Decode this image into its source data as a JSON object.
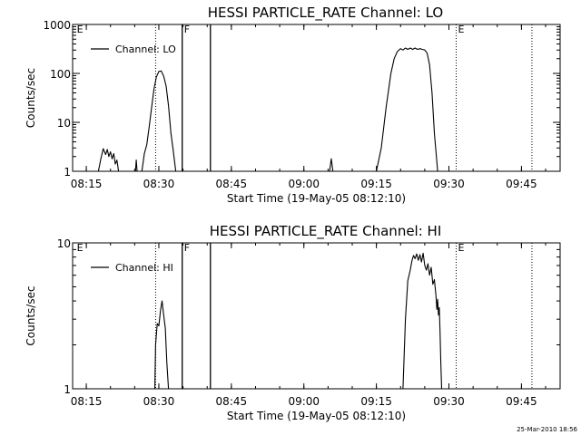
{
  "footer": {
    "timestamp": "25-Mar-2010 18:56"
  },
  "chart_data": [
    {
      "type": "line",
      "title": "HESSI PARTICLE_RATE Channel: LO",
      "xlabel": "Start Time (19-May-05 08:12:10)",
      "ylabel": "Counts/sec",
      "yscale": "log",
      "xlim": [
        "08:12:10",
        "09:53:00"
      ],
      "ylim": [
        1,
        1000
      ],
      "x_ticks": [
        "08:15",
        "08:30",
        "08:45",
        "09:00",
        "09:15",
        "09:30",
        "09:45"
      ],
      "y_ticks": [
        "1",
        "10",
        "100",
        "1000"
      ],
      "legend": {
        "label": "Channel: LO",
        "placement": "top-left"
      },
      "markers": [
        {
          "label": "E",
          "time": "08:12:40",
          "style": "none"
        },
        {
          "label": "",
          "time": "08:29:20",
          "style": "dotted"
        },
        {
          "label": "F",
          "time": "08:34:50",
          "style": "solid"
        },
        {
          "label": "",
          "time": "08:40:40",
          "style": "solid"
        },
        {
          "label": "E",
          "time": "09:31:30",
          "style": "dotted"
        },
        {
          "label": "",
          "time": "09:47:10",
          "style": "dotted"
        }
      ],
      "series": [
        {
          "segments": [
            [
              [
                "08:17:30",
                1
              ],
              [
                "08:18:00",
                1.8
              ],
              [
                "08:18:30",
                2.9
              ],
              [
                "08:19:00",
                2.2
              ],
              [
                "08:19:20",
                2.8
              ],
              [
                "08:19:40",
                2.0
              ],
              [
                "08:20:00",
                2.5
              ],
              [
                "08:20:20",
                1.8
              ],
              [
                "08:20:40",
                2.3
              ],
              [
                "08:21:00",
                1.4
              ],
              [
                "08:21:20",
                1.7
              ],
              [
                "08:21:40",
                1
              ]
            ],
            [
              [
                "08:25:10",
                1
              ],
              [
                "08:25:20",
                1.7
              ],
              [
                "08:25:30",
                1
              ]
            ],
            [
              [
                "08:26:30",
                1
              ],
              [
                "08:27:00",
                2.3
              ],
              [
                "08:27:30",
                3.5
              ],
              [
                "08:28:00",
                8
              ],
              [
                "08:28:30",
                20
              ],
              [
                "08:29:00",
                48
              ],
              [
                "08:29:30",
                85
              ],
              [
                "08:30:00",
                110
              ],
              [
                "08:30:30",
                112
              ],
              [
                "08:31:00",
                88
              ],
              [
                "08:31:30",
                55
              ],
              [
                "08:32:00",
                22
              ],
              [
                "08:32:30",
                6
              ],
              [
                "08:33:00",
                2.5
              ],
              [
                "08:33:30",
                1
              ]
            ],
            [
              [
                "09:05:20",
                1
              ],
              [
                "09:05:40",
                1.8
              ],
              [
                "09:06:00",
                1
              ]
            ],
            [
              [
                "09:15:00",
                1
              ],
              [
                "09:16:00",
                3
              ],
              [
                "09:17:00",
                20
              ],
              [
                "09:18:00",
                100
              ],
              [
                "09:18:40",
                200
              ],
              [
                "09:19:20",
                280
              ],
              [
                "09:20:00",
                320
              ],
              [
                "09:20:30",
                300
              ],
              [
                "09:21:00",
                330
              ],
              [
                "09:21:30",
                310
              ],
              [
                "09:22:00",
                330
              ],
              [
                "09:22:30",
                310
              ],
              [
                "09:23:00",
                330
              ],
              [
                "09:23:30",
                310
              ],
              [
                "09:24:00",
                320
              ],
              [
                "09:24:30",
                310
              ],
              [
                "09:25:00",
                300
              ],
              [
                "09:25:30",
                260
              ],
              [
                "09:26:00",
                150
              ],
              [
                "09:26:30",
                40
              ],
              [
                "09:27:00",
                6
              ],
              [
                "09:27:40",
                1
              ]
            ]
          ]
        }
      ]
    },
    {
      "type": "line",
      "title": "HESSI PARTICLE_RATE Channel: HI",
      "xlabel": "Start Time (19-May-05 08:12:10)",
      "ylabel": "Counts/sec",
      "yscale": "log",
      "xlim": [
        "08:12:10",
        "09:53:00"
      ],
      "ylim": [
        1,
        10
      ],
      "x_ticks": [
        "08:15",
        "08:30",
        "08:45",
        "09:00",
        "09:15",
        "09:30",
        "09:45"
      ],
      "y_ticks": [
        "1",
        "10"
      ],
      "legend": {
        "label": "Channel: HI",
        "placement": "top-left"
      },
      "markers": [
        {
          "label": "E",
          "time": "08:12:40",
          "style": "none"
        },
        {
          "label": "",
          "time": "08:29:20",
          "style": "dotted"
        },
        {
          "label": "F",
          "time": "08:34:50",
          "style": "solid"
        },
        {
          "label": "",
          "time": "08:40:40",
          "style": "solid"
        },
        {
          "label": "E",
          "time": "09:31:30",
          "style": "dotted"
        },
        {
          "label": "",
          "time": "09:47:10",
          "style": "dotted"
        }
      ],
      "series": [
        {
          "segments": [
            [
              [
                "08:29:10",
                1
              ],
              [
                "08:29:20",
                2.0
              ],
              [
                "08:29:40",
                2.8
              ],
              [
                "08:30:00",
                2.7
              ],
              [
                "08:30:20",
                3.4
              ],
              [
                "08:30:40",
                4.0
              ],
              [
                "08:31:00",
                3.2
              ],
              [
                "08:31:20",
                2.6
              ],
              [
                "08:31:40",
                1.5
              ],
              [
                "08:32:00",
                1
              ]
            ],
            [
              [
                "09:20:30",
                1
              ],
              [
                "09:21:00",
                3
              ],
              [
                "09:21:30",
                5.5
              ],
              [
                "09:22:00",
                6.5
              ],
              [
                "09:22:20",
                7.5
              ],
              [
                "09:22:40",
                8.2
              ],
              [
                "09:23:00",
                7.8
              ],
              [
                "09:23:20",
                8.4
              ],
              [
                "09:23:40",
                7.6
              ],
              [
                "09:24:00",
                8.3
              ],
              [
                "09:24:20",
                7.4
              ],
              [
                "09:24:40",
                8.5
              ],
              [
                "09:25:00",
                7.0
              ],
              [
                "09:25:20",
                6.5
              ],
              [
                "09:25:40",
                7.2
              ],
              [
                "09:26:00",
                6.0
              ],
              [
                "09:26:20",
                6.8
              ],
              [
                "09:26:40",
                5.2
              ],
              [
                "09:27:00",
                5.6
              ],
              [
                "09:27:20",
                4.3
              ],
              [
                "09:27:30",
                3.5
              ],
              [
                "09:27:40",
                4.1
              ],
              [
                "09:27:50",
                3.2
              ],
              [
                "09:28:00",
                3.6
              ],
              [
                "09:28:10",
                2.5
              ],
              [
                "09:28:20",
                1.5
              ],
              [
                "09:28:30",
                1
              ]
            ]
          ]
        }
      ]
    }
  ]
}
